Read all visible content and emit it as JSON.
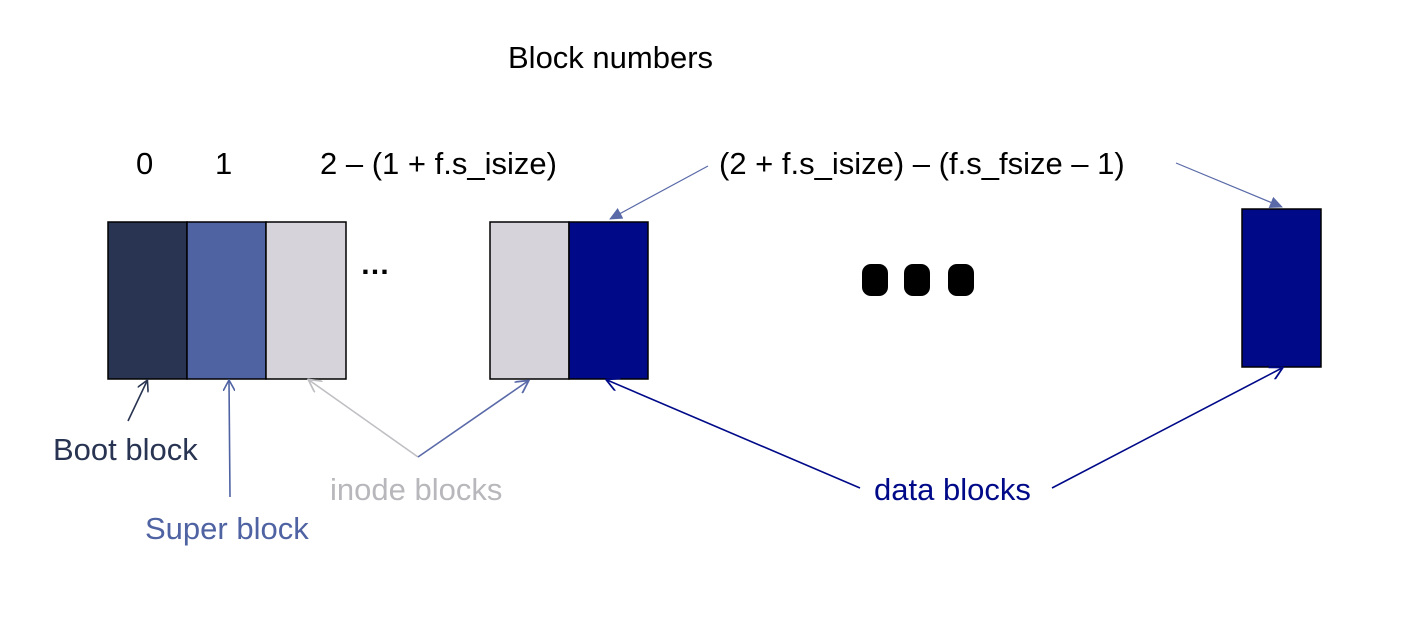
{
  "title": "Block numbers",
  "block_numbers": {
    "boot": "0",
    "super": "1",
    "inode_range": "2 – (1 + f.s_isize)",
    "data_range": "(2 + f.s_isize) – (f.s_fsize – 1)"
  },
  "ellipsis_small": "…",
  "labels": {
    "boot_block": "Boot block",
    "super_block": "Super block",
    "inode_blocks": "inode blocks",
    "data_blocks": "data blocks"
  },
  "colors": {
    "boot": "#283452",
    "super": "#4f63a3",
    "inode": "#d7d3da",
    "data": "#000a88",
    "inode_label": "#b8b8bc",
    "boot_label": "#283452",
    "super_label": "#4f63a3",
    "data_label": "#000a88",
    "block_border": "#000000"
  }
}
